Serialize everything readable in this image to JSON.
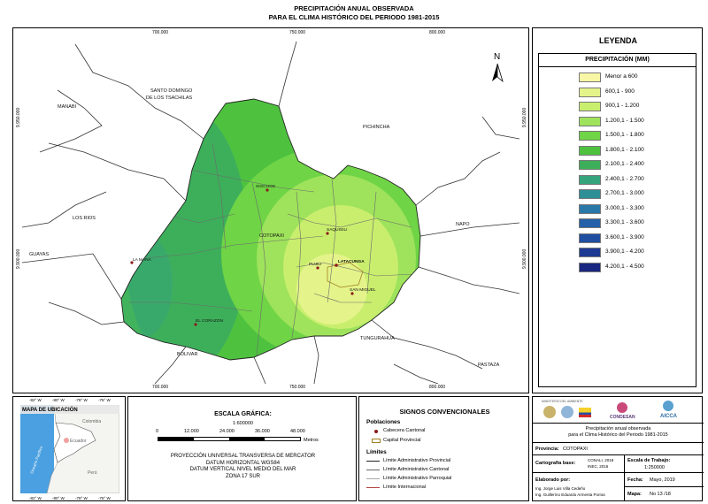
{
  "title": {
    "line1": "PRECIPITACIÓN ANUAL OBSERVADA",
    "line2": "PARA EL CLIMA HISTÓRICO DEL PERIODO 1981-2015"
  },
  "map": {
    "x_coords": [
      "700.000",
      "750.000",
      "800.000"
    ],
    "y_coords": [
      "9.950.000",
      "9.900.000"
    ],
    "north_label": "N",
    "neighbors": {
      "santo_domingo": "SANTO DOMINGO",
      "tsachilas": "DE LOS TSACHILAS",
      "manabi": "MANABI",
      "pichincha": "PICHINCHA",
      "los_rios": "LOS RIOS",
      "napo": "NAPO",
      "guayas": "GUAYAS",
      "bolivar": "BOLIVAR",
      "tungurahua": "TUNGURAHUA",
      "pastaza": "PASTAZA",
      "cotopaxi": "COTOPAXI"
    },
    "towns": {
      "sigchos": "SIGCHOS",
      "saquisili": "SAQUISILI",
      "pujili": "PUJILI",
      "latacunga": "LATACUNGA",
      "la_mana": "LA MANA",
      "san_miguel": "SAN MIGUEL",
      "el_corazon": "EL CORAZON"
    }
  },
  "legend": {
    "title": "LEYENDA",
    "subtitle": "PRECIPITACIÓN (MM)",
    "items": [
      {
        "label": "Menor a 600",
        "color": "#f7f7a6"
      },
      {
        "label": "600,1 - 900",
        "color": "#e4f48a"
      },
      {
        "label": "900,1 - 1.200",
        "color": "#c9ee6e"
      },
      {
        "label": "1.200,1 - 1.500",
        "color": "#9ee35b"
      },
      {
        "label": "1.500,1 - 1.800",
        "color": "#6fd446"
      },
      {
        "label": "1.800,1 - 2.100",
        "color": "#4ec23f"
      },
      {
        "label": "2.100,1 - 2.400",
        "color": "#3daf5b"
      },
      {
        "label": "2.400,1 - 2.700",
        "color": "#35a47c"
      },
      {
        "label": "2.700,1 - 3.000",
        "color": "#2e8f97"
      },
      {
        "label": "3.000,1 - 3.300",
        "color": "#2a78a8"
      },
      {
        "label": "3.300,1 - 3.600",
        "color": "#2461a8"
      },
      {
        "label": "3.600,1 - 3.900",
        "color": "#204ea0"
      },
      {
        "label": "3.900,1 - 4.200",
        "color": "#1d3a93"
      },
      {
        "label": "4.200,1 - 4.500",
        "color": "#1a2780"
      }
    ]
  },
  "location_map": {
    "title": "MAPA DE UBICACIÓN",
    "top_ticks": [
      "-82° W",
      "-80° W",
      "-78° W",
      "-76° W"
    ],
    "bottom_ticks": [
      "-82° W",
      "-80° W",
      "-78° W",
      "-76° W"
    ],
    "labels": {
      "colombia": "Colombia",
      "ecuador": "Ecuador",
      "peru": "Perú",
      "ocean": "Oceano Pacifico"
    }
  },
  "scale": {
    "title": "ESCALA GRÁFICA:",
    "ratio": "1:600000",
    "ticks": [
      "0",
      "12.000",
      "24.000",
      "36.000",
      "48.000"
    ],
    "unit": "Metros",
    "projection": [
      "PROYECCIÓN UNIVERSAL TRANSVERSA DE MERCATOR",
      "DATUM HORIZONTAL WGS84",
      "DATUM VERTICAL NIVEL MEDIO DEL MAR",
      "ZONA 17 SUR"
    ]
  },
  "signs": {
    "title": "SIGNOS CONVENCIONALES",
    "poblaciones": "Poblaciones",
    "cabecera": "Cabecera Cantonal",
    "capital": "Capital Provincial",
    "limites": "Límites",
    "lim_prov": "Límite Administrativo Provincial",
    "lim_cant": "Límite Administrativo Cantonal",
    "lim_parr": "Límite Administrativo Parroquial",
    "lim_int": "Límite Internacional"
  },
  "info": {
    "logos": {
      "ministerio": "MINISTERIO DEL AMBIENTE",
      "condesan": "CONDESAN",
      "aicca": "AICCA"
    },
    "desc1": "Precipitación anual observada",
    "desc2": "para el Clima Histórico del Periodo 1981-2015",
    "provincia_label": "Provincia:",
    "provincia_value": "COTOPAXI",
    "cartografia_label": "Cartografía base:",
    "cartografia_value1": "CONALI, 2018",
    "cartografia_value2": "INEC, 2016",
    "escala_label": "Escala de Trabajo:",
    "escala_value": "1:250000",
    "elaborado_label": "Elaborado por:",
    "elaborado_1": "Ing. Jorge Luis Villa Cedeño",
    "elaborado_2": "Ing. Guillermo Eduardo Armenta Porras",
    "fecha_label": "Fecha:",
    "fecha_value": "Mayo, 2019",
    "mapa_label": "Mapa:",
    "mapa_value": "No 13 /18"
  }
}
